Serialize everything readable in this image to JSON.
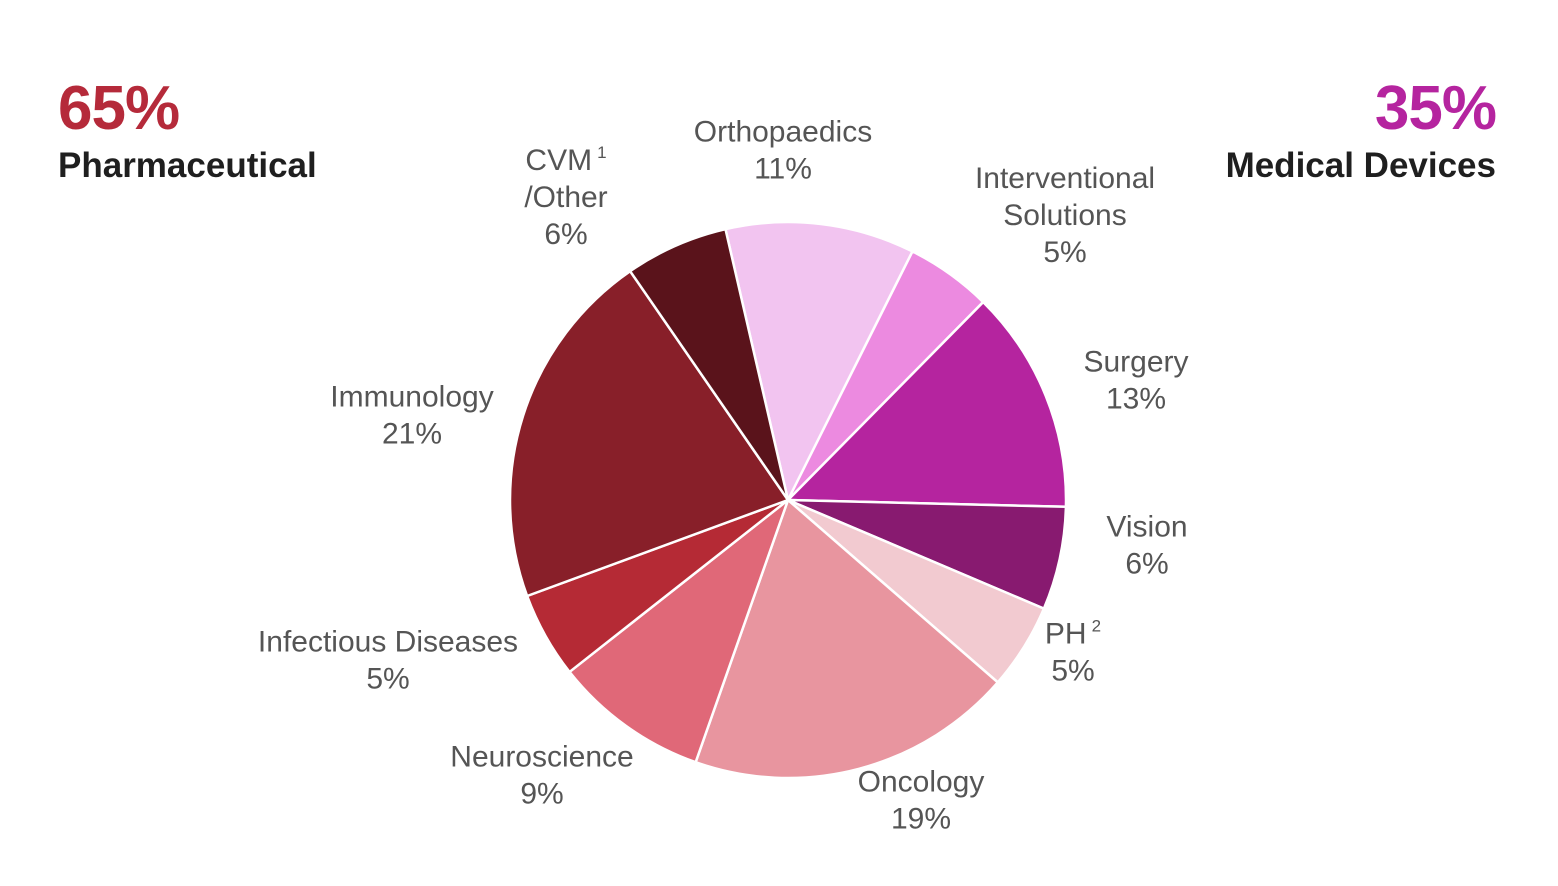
{
  "left_group": {
    "percent": "65%",
    "name": "Pharmaceutical",
    "color": "#b52a3a"
  },
  "right_group": {
    "percent": "35%",
    "name": "Medical Devices",
    "color": "#b5249f"
  },
  "chart_data": {
    "type": "pie",
    "slices": [
      {
        "label": "Orthopaedics",
        "value_label": "11%",
        "value": 11,
        "color": "#f2c4f0",
        "group": "Medical Devices"
      },
      {
        "label": "Interventional Solutions",
        "value_label": "5%",
        "value": 5,
        "color": "#ec8ae0",
        "group": "Medical Devices"
      },
      {
        "label": "Surgery",
        "value_label": "13%",
        "value": 13,
        "color": "#b5249f",
        "group": "Medical Devices"
      },
      {
        "label": "Vision",
        "value_label": "6%",
        "value": 6,
        "color": "#881a70",
        "group": "Medical Devices"
      },
      {
        "label": "PH",
        "superscript": "2",
        "value_label": "5%",
        "value": 5,
        "color": "#f2cad0",
        "group": "Pharmaceutical"
      },
      {
        "label": "Oncology",
        "value_label": "19%",
        "value": 19,
        "color": "#e8959f",
        "group": "Pharmaceutical"
      },
      {
        "label": "Neuroscience",
        "value_label": "9%",
        "value": 9,
        "color": "#e06878",
        "group": "Pharmaceutical"
      },
      {
        "label": "Infectious Diseases",
        "value_label": "5%",
        "value": 5,
        "color": "#b52a35",
        "group": "Pharmaceutical"
      },
      {
        "label": "Immunology",
        "value_label": "21%",
        "value": 21,
        "color": "#881f29",
        "group": "Pharmaceutical"
      },
      {
        "label": "CVM",
        "label_line2": "/Other",
        "superscript": "1",
        "value_label": "6%",
        "value": 6,
        "color": "#5a131b",
        "group": "Pharmaceutical"
      }
    ]
  }
}
